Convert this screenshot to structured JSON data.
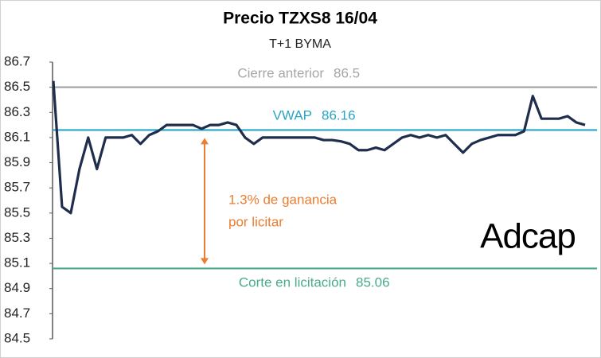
{
  "chart_data": {
    "type": "line",
    "title": "Precio TZXS8 16/04",
    "subtitle": "T+1 BYMA",
    "ylim": [
      84.5,
      86.7
    ],
    "yticks": [
      84.5,
      84.7,
      84.9,
      85.1,
      85.3,
      85.5,
      85.7,
      85.9,
      86.1,
      86.3,
      86.5,
      86.7
    ],
    "series": [
      {
        "color": "#1f2e4d",
        "values": [
          86.55,
          85.55,
          85.5,
          85.85,
          86.1,
          85.85,
          86.1,
          86.1,
          86.1,
          86.12,
          86.05,
          86.12,
          86.15,
          86.2,
          86.2,
          86.2,
          86.2,
          86.17,
          86.2,
          86.2,
          86.22,
          86.2,
          86.1,
          86.05,
          86.1,
          86.1,
          86.1,
          86.1,
          86.1,
          86.1,
          86.1,
          86.08,
          86.08,
          86.07,
          86.05,
          86.0,
          86.0,
          86.02,
          86.0,
          86.05,
          86.1,
          86.12,
          86.1,
          86.12,
          86.1,
          86.12,
          86.05,
          85.98,
          86.05,
          86.08,
          86.1,
          86.12,
          86.12,
          86.12,
          86.15,
          86.43,
          86.25,
          86.25,
          86.25,
          86.27,
          86.22,
          86.2
        ]
      }
    ],
    "reference_lines": [
      {
        "label": "Cierre anterior",
        "value": 86.5,
        "color": "#a6a6a6"
      },
      {
        "label": "VWAP",
        "value": 86.16,
        "color": "#2aa5c2"
      },
      {
        "label": "Corte en licitación",
        "value": 85.06,
        "color": "#4aab8a"
      }
    ],
    "annotation": {
      "lines": [
        "1.3% de ganancia",
        "por licitar"
      ],
      "color": "#ed7d31"
    },
    "logo": "Adcap"
  }
}
